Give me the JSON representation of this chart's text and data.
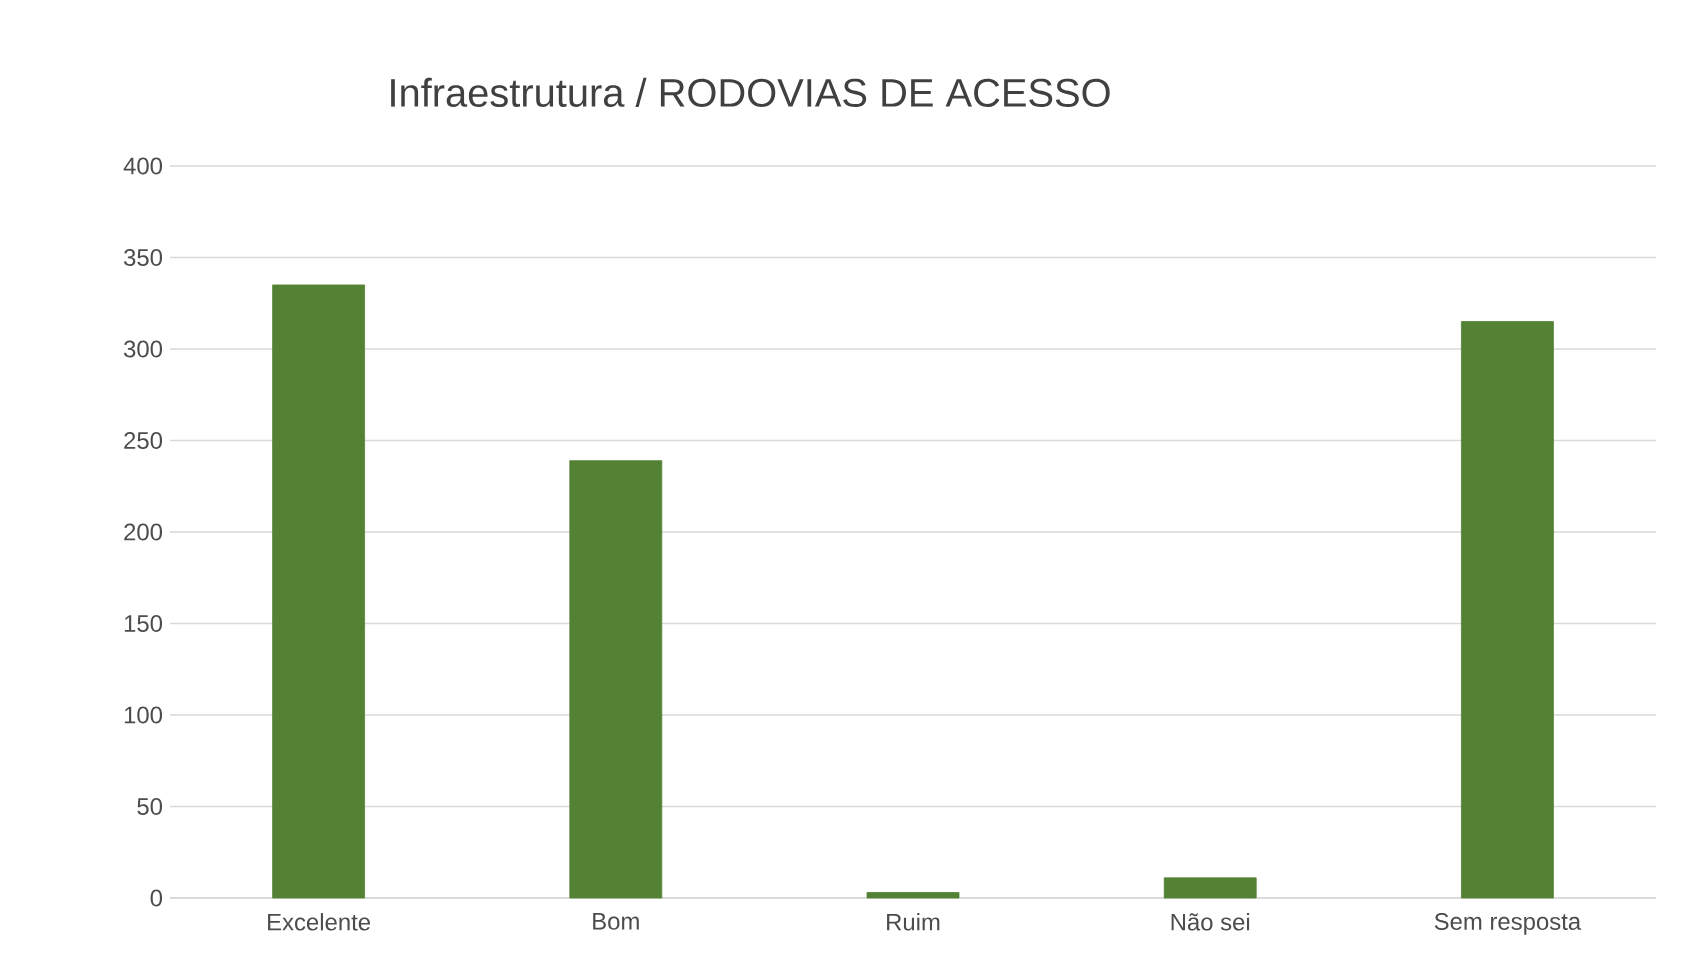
{
  "chart_data": {
    "type": "bar",
    "title": "Infraestrutura / RODOVIAS DE ACESSO",
    "categories": [
      "Excelente",
      "Bom",
      "Ruim",
      "Não sei",
      "Sem resposta"
    ],
    "values": [
      335,
      239,
      3,
      11,
      315
    ],
    "color": "#548235",
    "ylim": [
      0,
      400
    ],
    "yticks": [
      0,
      50,
      100,
      150,
      200,
      250,
      300,
      350,
      400
    ],
    "grid": "y"
  }
}
